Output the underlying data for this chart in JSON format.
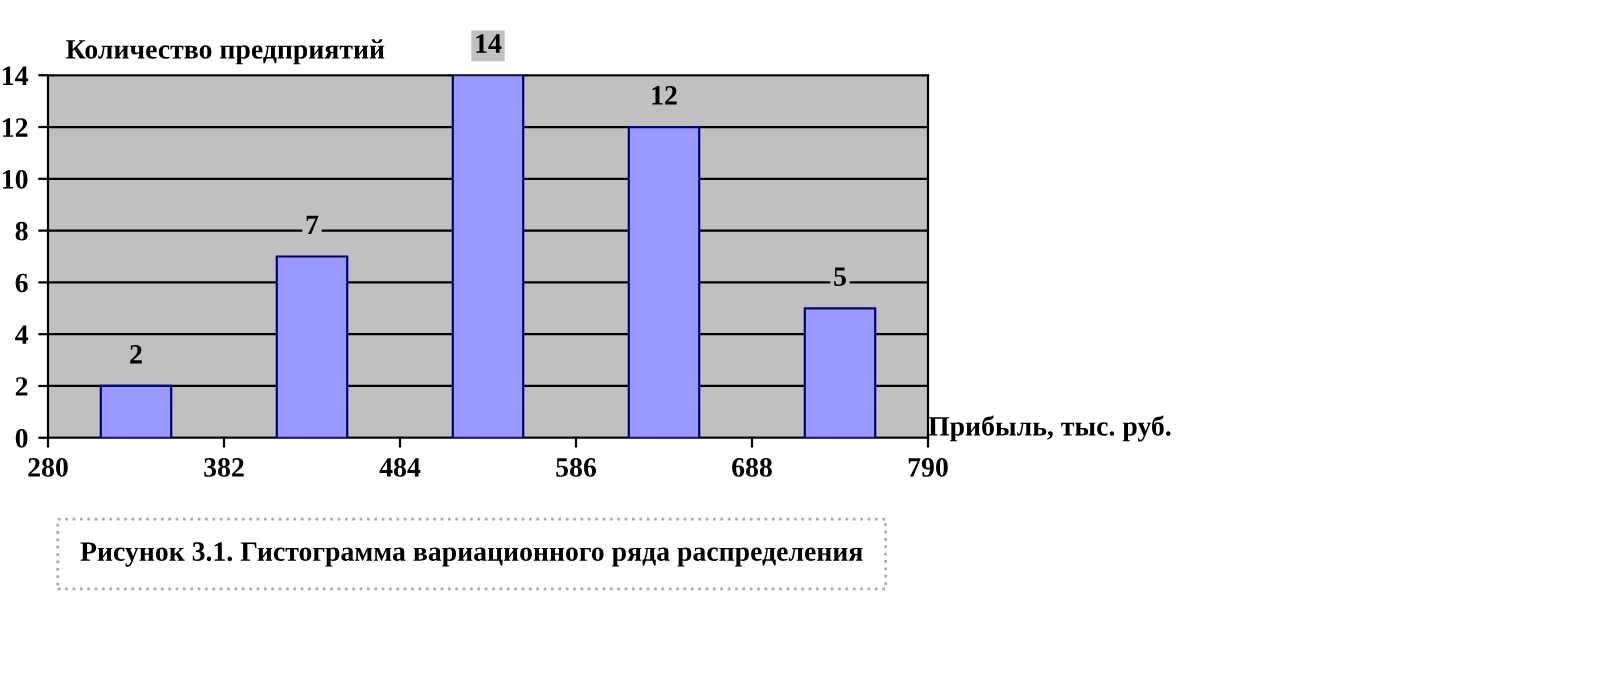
{
  "chart_data": {
    "type": "histogram",
    "ylabel": "Количество предприятий",
    "xlabel": "Прибыль, тыс. руб.",
    "bins": [
      280,
      382,
      484,
      586,
      688,
      790
    ],
    "values": [
      2,
      7,
      14,
      12,
      5
    ],
    "color": "#9999ff",
    "xlim": [
      280,
      790
    ],
    "xticks": [
      280,
      382,
      484,
      586,
      688,
      790
    ],
    "ylim": [
      0,
      14
    ],
    "yticks": [
      0,
      2,
      4,
      6,
      8,
      10,
      12,
      14
    ],
    "grid": "y",
    "data_labels": true,
    "annotations": [
      "Рисунок 3.1. Гистограмма вариационного ряда распределения"
    ]
  }
}
